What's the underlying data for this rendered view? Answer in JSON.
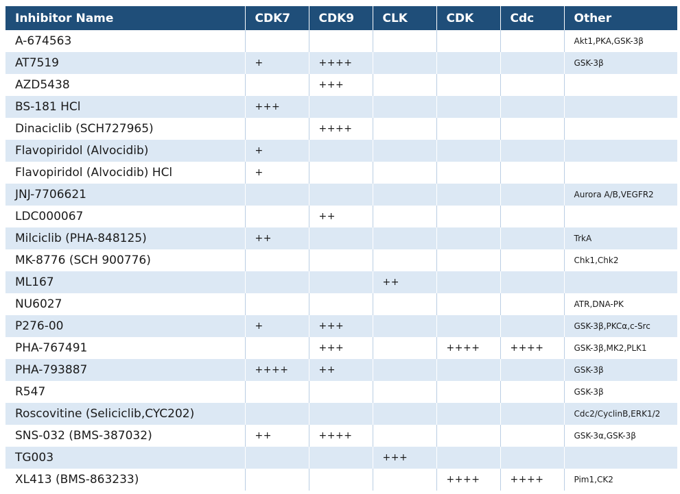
{
  "headers": [
    "Inhibitor Name",
    "CDK7",
    "CDK9",
    "CLK",
    "CDK",
    "Cdc",
    "Other"
  ],
  "rows": [
    {
      "name": "A-674563",
      "cdk7": "",
      "cdk9": "",
      "clk": "",
      "cdk": "",
      "cdc": "",
      "other": "Akt1,PKA,GSK-3β"
    },
    {
      "name": "AT7519",
      "cdk7": "+",
      "cdk9": "++++",
      "clk": "",
      "cdk": "",
      "cdc": "",
      "other": "GSK-3β"
    },
    {
      "name": "AZD5438",
      "cdk7": "",
      "cdk9": "+++",
      "clk": "",
      "cdk": "",
      "cdc": "",
      "other": ""
    },
    {
      "name": "BS-181 HCl",
      "cdk7": "+++",
      "cdk9": "",
      "clk": "",
      "cdk": "",
      "cdc": "",
      "other": ""
    },
    {
      "name": "Dinaciclib (SCH727965)",
      "cdk7": "",
      "cdk9": "++++",
      "clk": "",
      "cdk": "",
      "cdc": "",
      "other": ""
    },
    {
      "name": "Flavopiridol (Alvocidib)",
      "cdk7": "+",
      "cdk9": "",
      "clk": "",
      "cdk": "",
      "cdc": "",
      "other": ""
    },
    {
      "name": "Flavopiridol (Alvocidib) HCl",
      "cdk7": "+",
      "cdk9": "",
      "clk": "",
      "cdk": "",
      "cdc": "",
      "other": ""
    },
    {
      "name": "JNJ-7706621",
      "cdk7": "",
      "cdk9": "",
      "clk": "",
      "cdk": "",
      "cdc": "",
      "other": "Aurora A/B,VEGFR2"
    },
    {
      "name": "LDC000067",
      "cdk7": "",
      "cdk9": "++",
      "clk": "",
      "cdk": "",
      "cdc": "",
      "other": ""
    },
    {
      "name": "Milciclib (PHA-848125)",
      "cdk7": "++",
      "cdk9": "",
      "clk": "",
      "cdk": "",
      "cdc": "",
      "other": "TrkA"
    },
    {
      "name": "MK-8776 (SCH 900776)",
      "cdk7": "",
      "cdk9": "",
      "clk": "",
      "cdk": "",
      "cdc": "",
      "other": "Chk1,Chk2"
    },
    {
      "name": "ML167",
      "cdk7": "",
      "cdk9": "",
      "clk": "++",
      "cdk": "",
      "cdc": "",
      "other": ""
    },
    {
      "name": "NU6027",
      "cdk7": "",
      "cdk9": "",
      "clk": "",
      "cdk": "",
      "cdc": "",
      "other": "ATR,DNA-PK"
    },
    {
      "name": "P276-00",
      "cdk7": "+",
      "cdk9": "+++",
      "clk": "",
      "cdk": "",
      "cdc": "",
      "other": "GSK-3β,PKCα,c-Src"
    },
    {
      "name": "PHA-767491",
      "cdk7": "",
      "cdk9": "+++",
      "clk": "",
      "cdk": "++++",
      "cdc": "++++",
      "other": "GSK-3β,MK2,PLK1"
    },
    {
      "name": "PHA-793887",
      "cdk7": "++++",
      "cdk9": "++",
      "clk": "",
      "cdk": "",
      "cdc": "",
      "other": "GSK-3β"
    },
    {
      "name": "R547",
      "cdk7": "",
      "cdk9": "",
      "clk": "",
      "cdk": "",
      "cdc": "",
      "other": "GSK-3β"
    },
    {
      "name": "Roscovitine (Seliciclib,CYC202)",
      "cdk7": "",
      "cdk9": "",
      "clk": "",
      "cdk": "",
      "cdc": "",
      "other": "Cdc2/CyclinB,ERK1/2"
    },
    {
      "name": "SNS-032 (BMS-387032)",
      "cdk7": "++",
      "cdk9": "++++",
      "clk": "",
      "cdk": "",
      "cdc": "",
      "other": "GSK-3α,GSK-3β"
    },
    {
      "name": "TG003",
      "cdk7": "",
      "cdk9": "",
      "clk": "+++",
      "cdk": "",
      "cdc": "",
      "other": ""
    },
    {
      "name": "XL413 (BMS-863233)",
      "cdk7": "",
      "cdk9": "",
      "clk": "",
      "cdk": "++++",
      "cdc": "++++",
      "other": "Pim1,CK2"
    }
  ],
  "colors": {
    "header_bg": "#1f4e79",
    "header_text": "#ffffff",
    "stripe": "#dce8f4"
  }
}
